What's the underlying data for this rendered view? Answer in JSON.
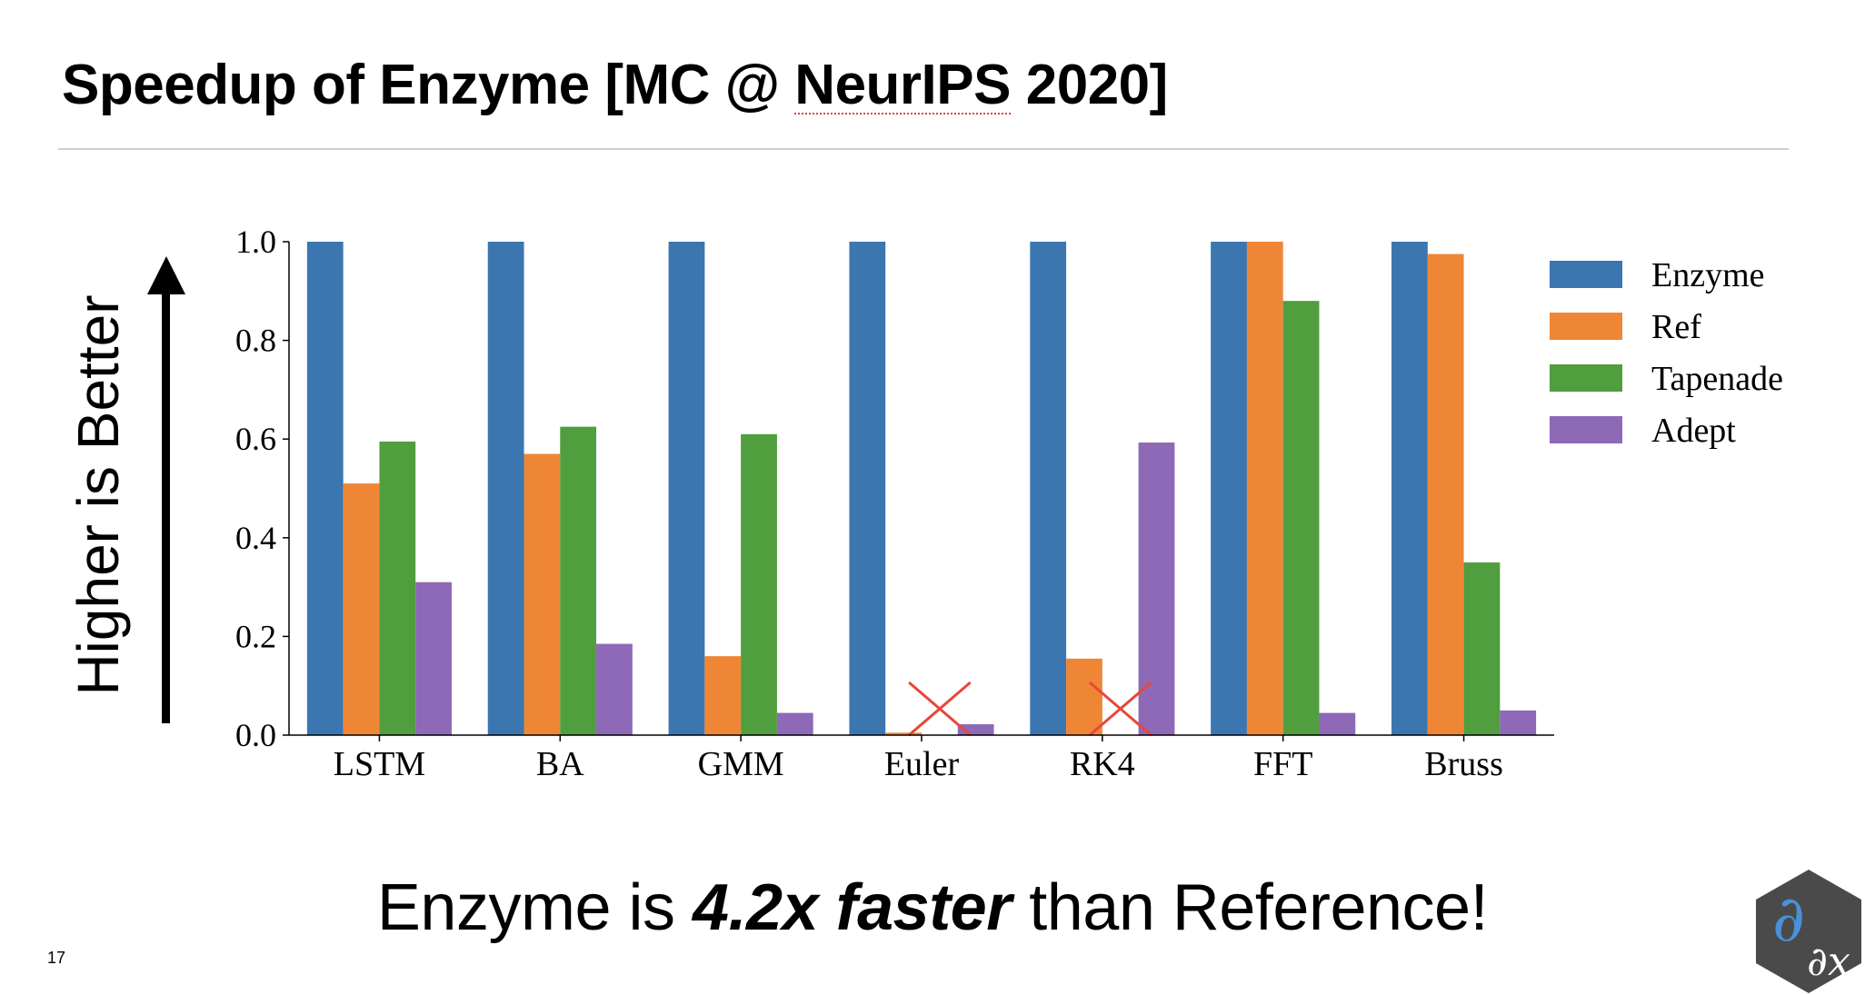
{
  "slide": {
    "title_prefix": "Speedup of Enzyme [MC @ ",
    "title_underlined": "NeurIPS",
    "title_suffix": " 2020]",
    "side_label": "Higher is Better",
    "subtitle_prefix": "Enzyme is ",
    "subtitle_emphasis": "4.2x faster",
    "subtitle_suffix": " than Reference!",
    "page_number": "17"
  },
  "chart_data": {
    "type": "bar",
    "categories": [
      "LSTM",
      "BA",
      "GMM",
      "Euler",
      "RK4",
      "FFT",
      "Bruss"
    ],
    "series": [
      {
        "name": "Enzyme",
        "color": "#3b76b0",
        "values": [
          1.0,
          1.0,
          1.0,
          1.0,
          1.0,
          1.0,
          1.0
        ]
      },
      {
        "name": "Ref",
        "color": "#ef8636",
        "values": [
          0.51,
          0.57,
          0.16,
          0.005,
          0.155,
          1.0,
          0.975
        ]
      },
      {
        "name": "Tapenade",
        "color": "#519e3e",
        "values": [
          0.595,
          0.625,
          0.61,
          null,
          null,
          0.88,
          0.35
        ]
      },
      {
        "name": "Adept",
        "color": "#8d69b8",
        "values": [
          0.31,
          0.185,
          0.045,
          0.022,
          0.593,
          0.045,
          0.05
        ]
      }
    ],
    "missing_marker": "red-x",
    "missing": [
      {
        "category": "Euler",
        "series": "Tapenade"
      },
      {
        "category": "RK4",
        "series": "Tapenade"
      }
    ],
    "ylim": [
      0.0,
      1.0
    ],
    "yticks": [
      "0.0",
      "0.2",
      "0.4",
      "0.6",
      "0.8",
      "1.0"
    ],
    "xlabel": "",
    "ylabel": "",
    "legend_position": "top-right",
    "grid": false
  }
}
